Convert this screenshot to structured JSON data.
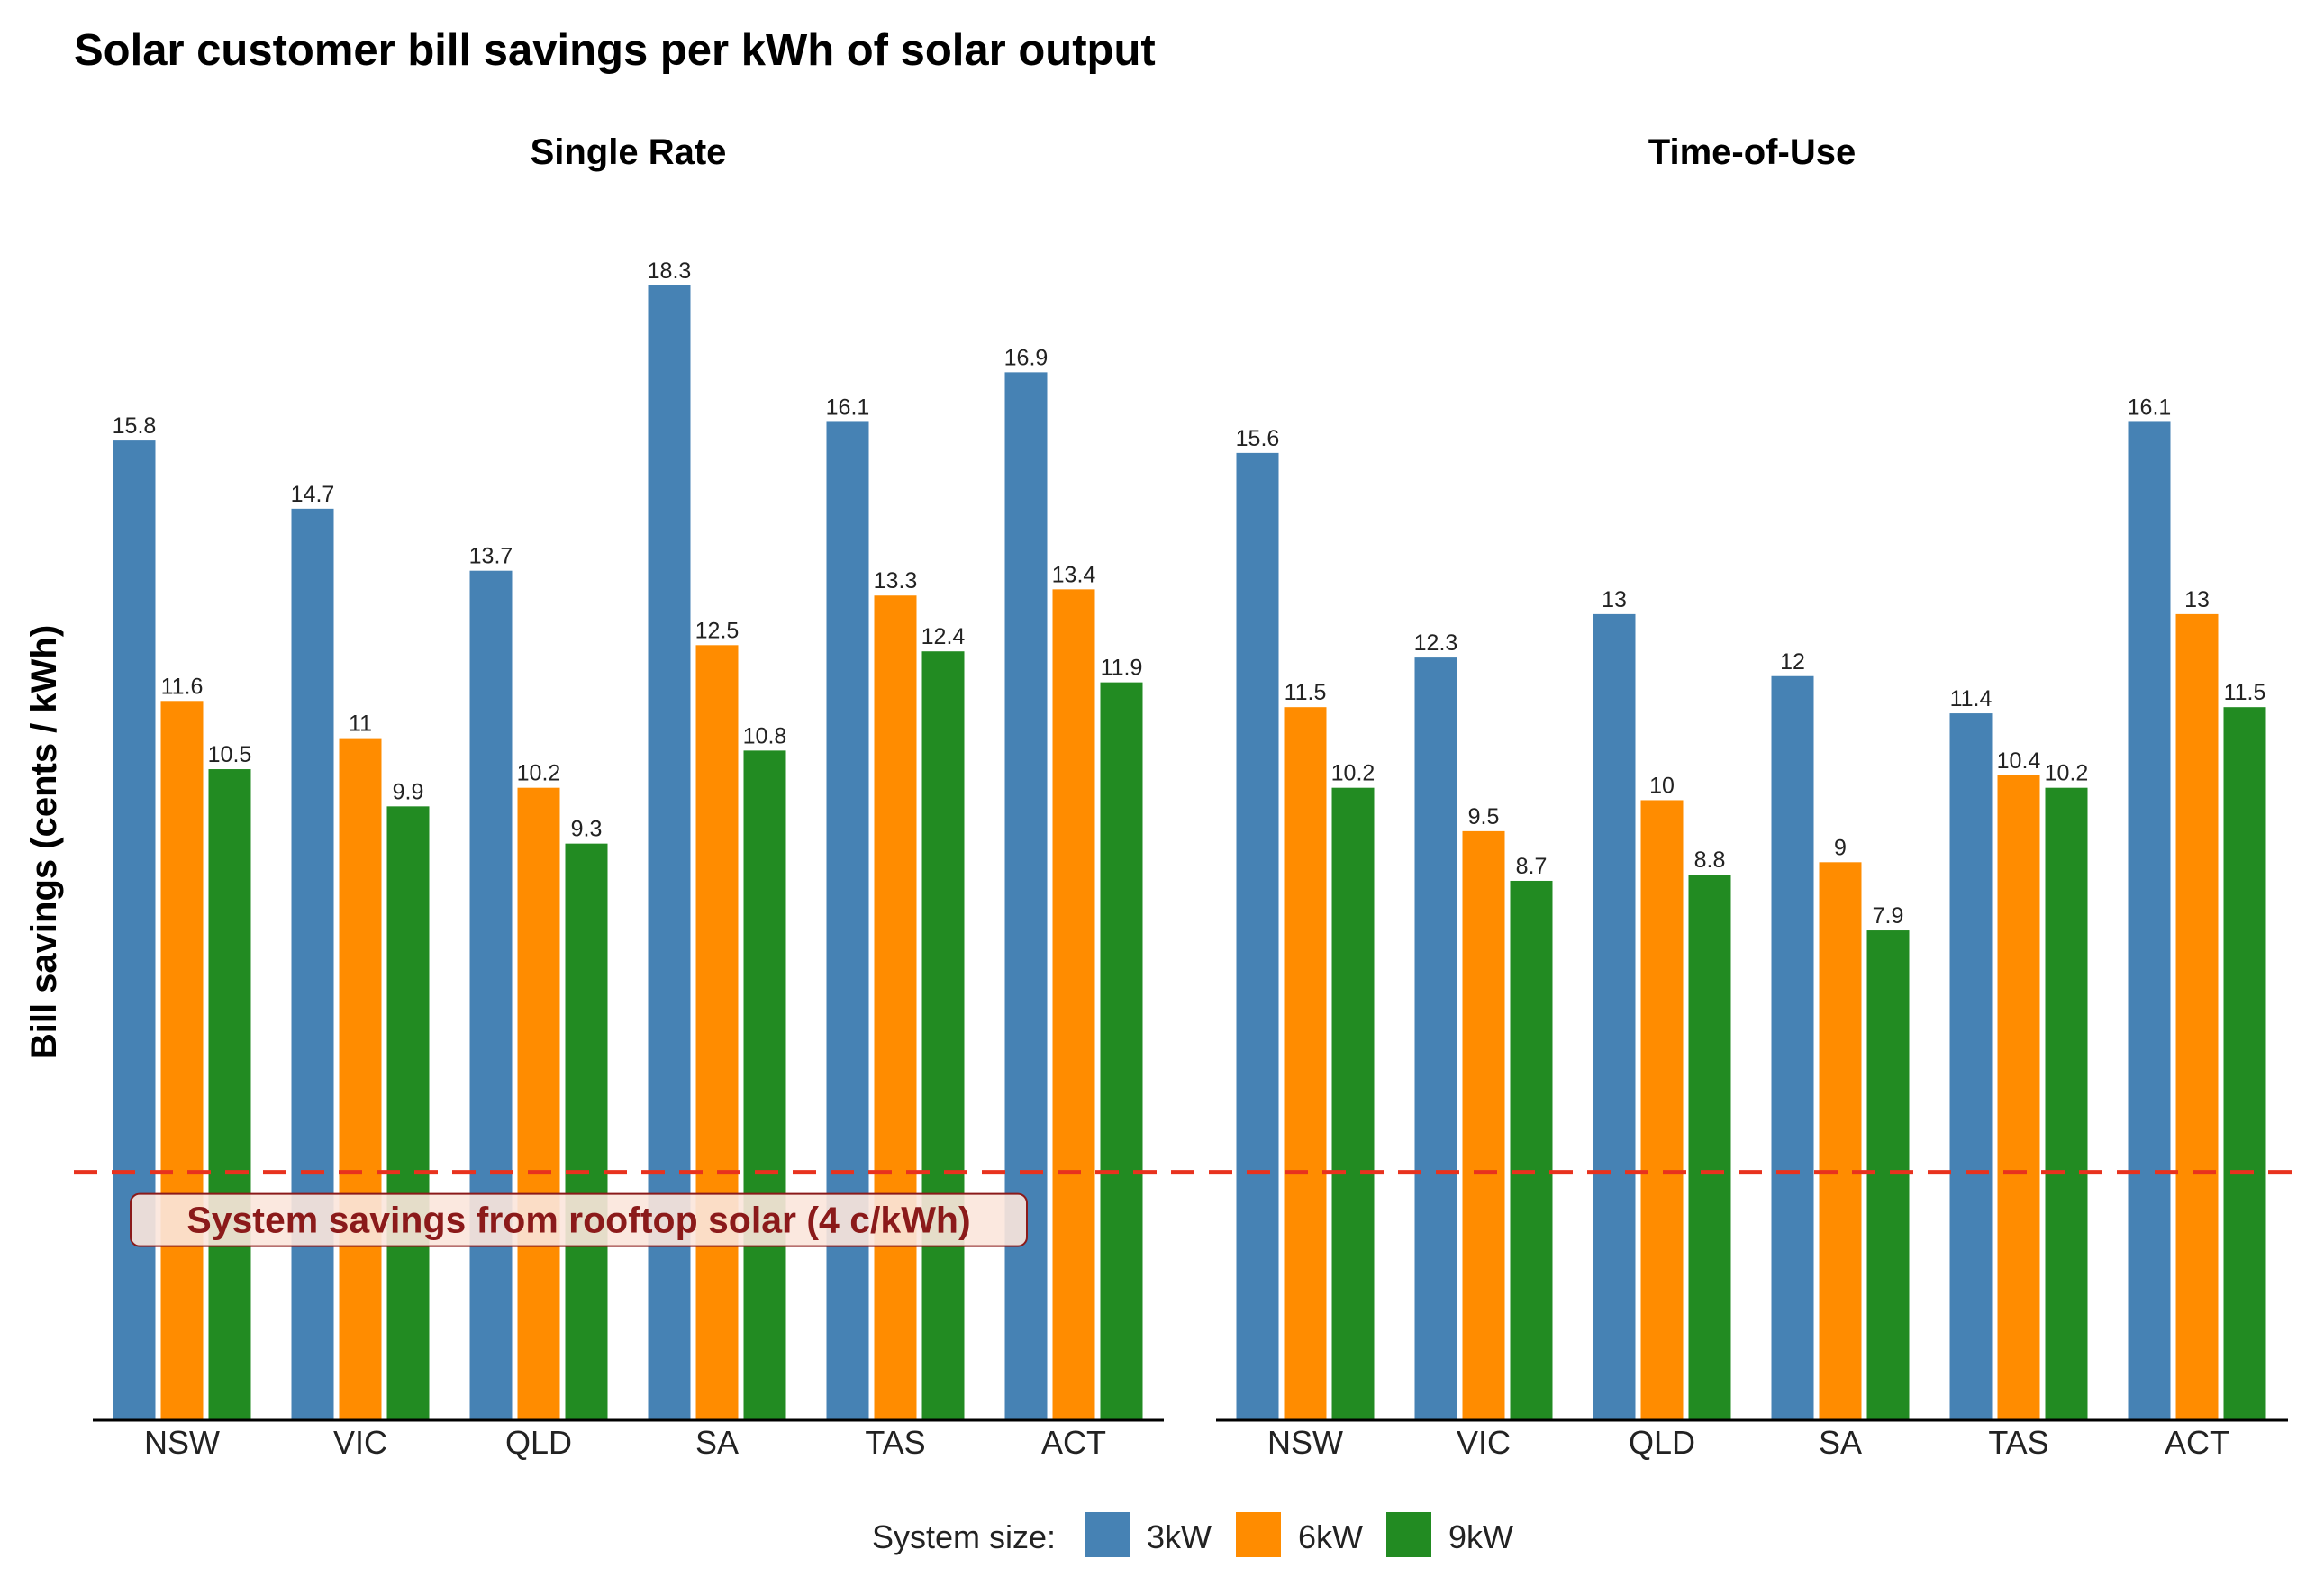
{
  "chart_data": {
    "type": "bar",
    "title": "Solar customer bill savings per kWh of solar output",
    "ylabel": "Bill savings (cents / kWh)",
    "xlabel": "",
    "ylim": [
      0,
      19.2
    ],
    "grid": false,
    "categories": [
      "NSW",
      "VIC",
      "QLD",
      "SA",
      "TAS",
      "ACT"
    ],
    "panels": [
      {
        "title": "Single Rate",
        "series": [
          {
            "name": "3kW",
            "values": [
              15.8,
              14.7,
              13.7,
              18.3,
              16.1,
              16.9
            ]
          },
          {
            "name": "6kW",
            "values": [
              11.6,
              11,
              10.2,
              12.5,
              13.3,
              13.4
            ]
          },
          {
            "name": "9kW",
            "values": [
              10.5,
              9.9,
              9.3,
              10.8,
              12.4,
              11.9
            ]
          }
        ]
      },
      {
        "title": "Time-of-Use",
        "series": [
          {
            "name": "3kW",
            "values": [
              15.6,
              12.3,
              13,
              12,
              11.4,
              16.1
            ]
          },
          {
            "name": "6kW",
            "values": [
              11.5,
              9.5,
              10,
              9,
              10.4,
              13
            ]
          },
          {
            "name": "9kW",
            "values": [
              10.2,
              8.7,
              8.8,
              7.9,
              10.2,
              11.5
            ]
          }
        ]
      }
    ],
    "legend": {
      "title": "System size:",
      "placement": "bottom",
      "items": [
        "3kW",
        "6kW",
        "9kW"
      ]
    },
    "reference_line": {
      "value": 4,
      "style": "dashed",
      "color": "#e8321e",
      "label": "System savings from rooftop solar (4 c/kWh)"
    },
    "colors": {
      "3kW": "#4682b4",
      "6kW": "#ff8c00",
      "9kW": "#228b22",
      "annotation_text": "#8b1a1a",
      "annotation_fill": "#fbe5dc"
    }
  }
}
